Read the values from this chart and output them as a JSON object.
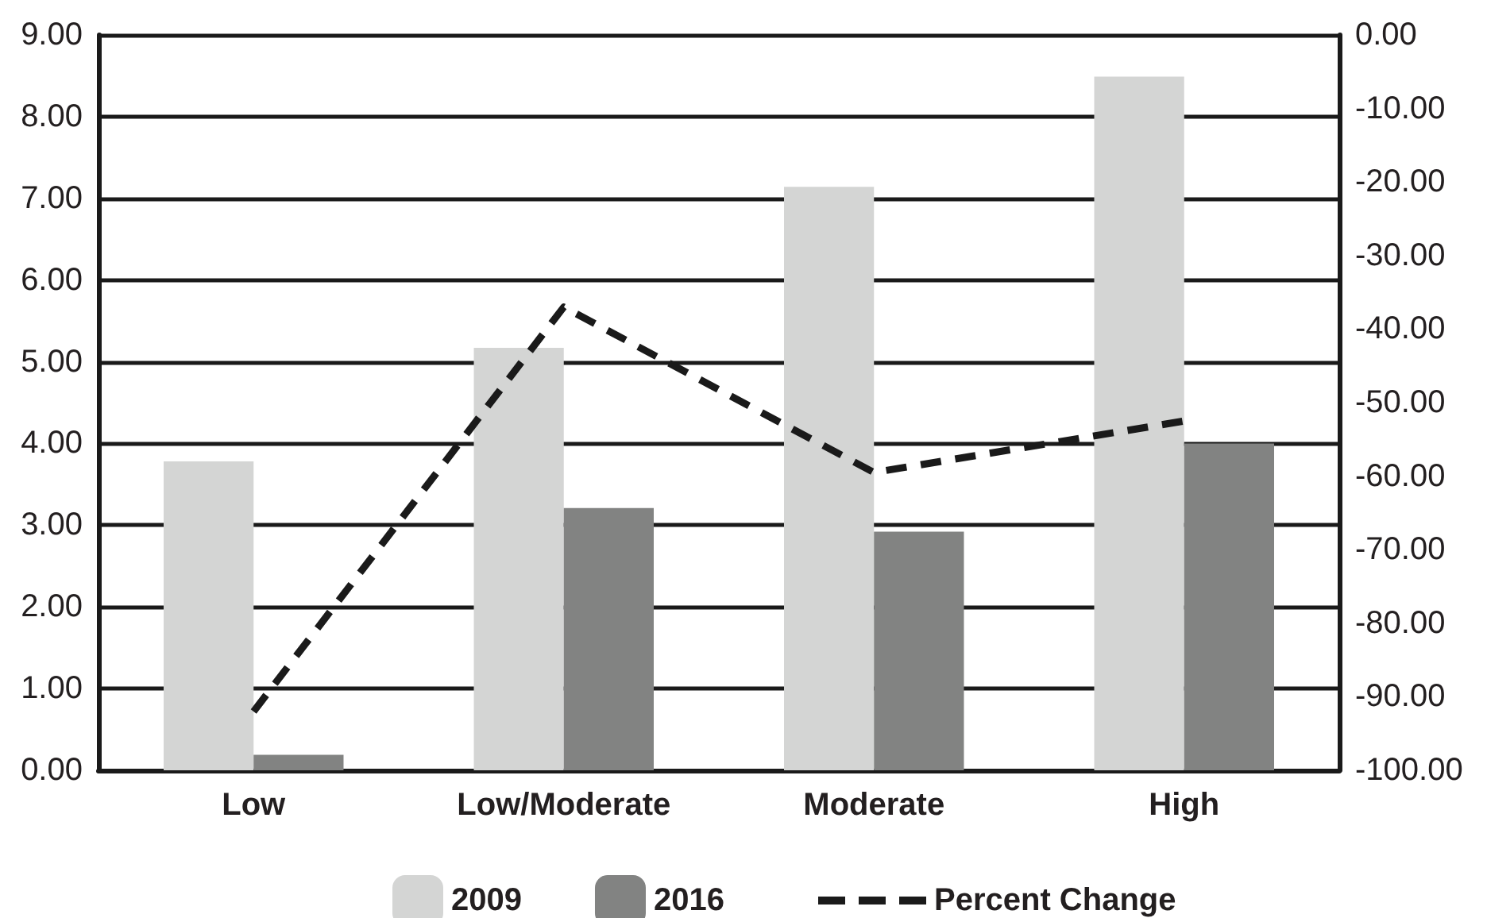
{
  "chart_data": {
    "type": "bar",
    "categories": [
      "Low",
      "Low/Moderate",
      "Moderate",
      "High"
    ],
    "series": [
      {
        "name": "2009",
        "color": "#d4d5d4",
        "values": [
          3.78,
          5.17,
          7.14,
          8.49
        ]
      },
      {
        "name": "2016",
        "color": "#828382",
        "values": [
          0.19,
          3.21,
          2.92,
          4.0
        ]
      },
      {
        "name": "Percent Change",
        "type": "line",
        "axis": "y2",
        "color": "#1a1a1a",
        "line_style": "dashed",
        "values": [
          -92,
          -37,
          -59.5,
          -52.5
        ]
      }
    ],
    "ylim": [
      0,
      9
    ],
    "yticks": [
      {
        "value": 0,
        "label": "0.00"
      },
      {
        "value": 1,
        "label": "1.00"
      },
      {
        "value": 2,
        "label": "2.00"
      },
      {
        "value": 3,
        "label": "3.00"
      },
      {
        "value": 4,
        "label": "4.00"
      },
      {
        "value": 5,
        "label": "5.00"
      },
      {
        "value": 6,
        "label": "6.00"
      },
      {
        "value": 7,
        "label": "7.00"
      },
      {
        "value": 8,
        "label": "8.00"
      },
      {
        "value": 9,
        "label": "9.00"
      }
    ],
    "y2lim": [
      -100,
      0
    ],
    "y2ticks": [
      {
        "value": 0,
        "label": "0.00"
      },
      {
        "value": -10,
        "label": "-10.00"
      },
      {
        "value": -20,
        "label": "-20.00"
      },
      {
        "value": -30,
        "label": "-30.00"
      },
      {
        "value": -40,
        "label": "-40.00"
      },
      {
        "value": -50,
        "label": "-50.00"
      },
      {
        "value": -60,
        "label": "-60.00"
      },
      {
        "value": -70,
        "label": "-70.00"
      },
      {
        "value": -80,
        "label": "-80.00"
      },
      {
        "value": -90,
        "label": "-90.00"
      },
      {
        "value": -100,
        "label": "-100.00"
      }
    ],
    "grid": "y",
    "legend": "bottom"
  }
}
